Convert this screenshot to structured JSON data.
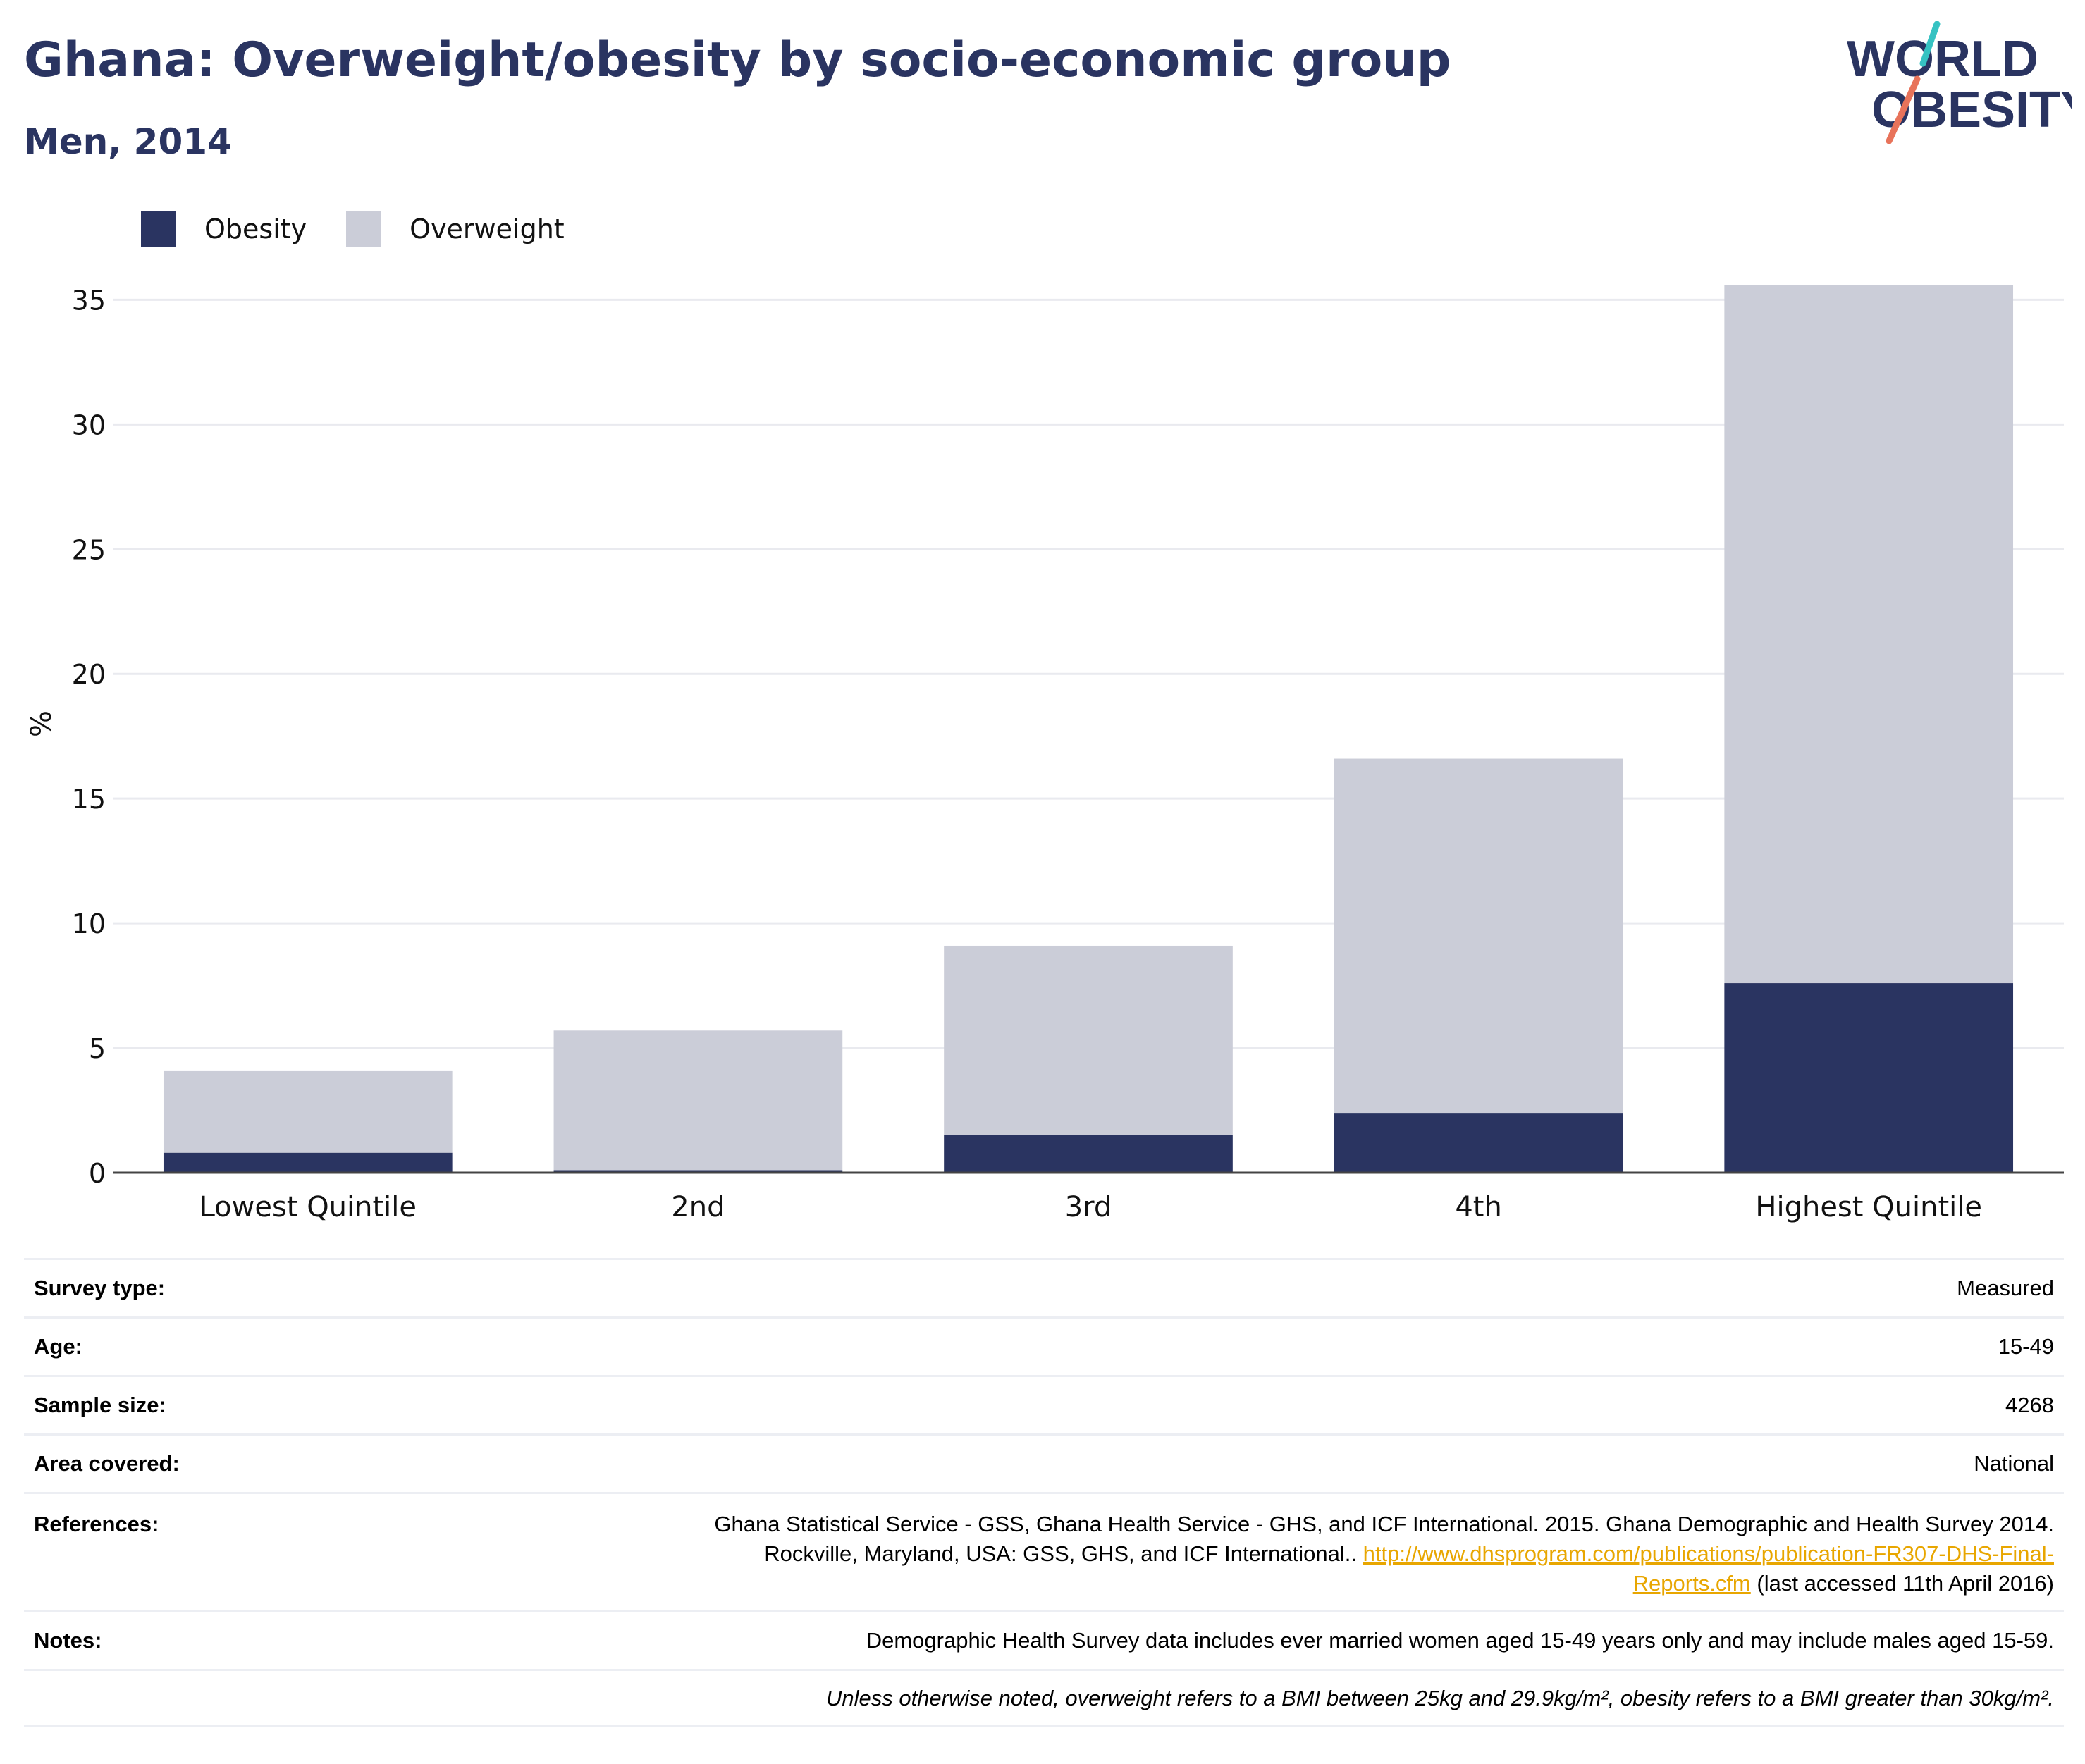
{
  "title": "Ghana: Overweight/obesity by socio-economic group",
  "subtitle": "Men, 2014",
  "logo": {
    "line1": "WORLD",
    "line2": "OBESITY",
    "accent_colors": [
      "#36c2c2",
      "#e8735a"
    ]
  },
  "legend": [
    {
      "label": "Obesity",
      "color": "#2a3461"
    },
    {
      "label": "Overweight",
      "color": "#cbcdd8"
    }
  ],
  "chart_data": {
    "type": "bar",
    "stacked": true,
    "categories": [
      "Lowest Quintile",
      "2nd",
      "3rd",
      "4th",
      "Highest Quintile"
    ],
    "series": [
      {
        "name": "Obesity",
        "color": "#2a3461",
        "values": [
          0.8,
          0.1,
          1.5,
          2.4,
          7.6
        ]
      },
      {
        "name": "Overweight",
        "color": "#cbcdd8",
        "values": [
          3.3,
          5.6,
          7.6,
          14.2,
          28.0
        ]
      }
    ],
    "ylabel": "%",
    "ylim": [
      0,
      36
    ],
    "yticks": [
      0,
      5,
      10,
      15,
      20,
      25,
      30,
      35
    ],
    "grid": true,
    "legend_position": "top-left"
  },
  "info": {
    "survey_type": {
      "label": "Survey type:",
      "value": "Measured"
    },
    "age": {
      "label": "Age:",
      "value": "15-49"
    },
    "sample_size": {
      "label": "Sample size:",
      "value": "4268"
    },
    "area_covered": {
      "label": "Area covered:",
      "value": "National"
    },
    "references": {
      "label": "References:",
      "text1": "Ghana Statistical Service - GSS, Ghana Health Service - GHS, and ICF International. 2015. Ghana Demographic and Health Survey 2014.",
      "text2": "Rockville, Maryland, USA: GSS, GHS, and ICF International..",
      "link_part1": "http://www.dhsprogram.com/publications/publication-FR307-DHS-Final-",
      "link_part2": "Reports.cfm",
      "accessed": "(last accessed 11th April 2016)"
    },
    "notes": {
      "label": "Notes:",
      "value": "Demographic Health Survey data includes ever married women aged 15-49 years only and may include males aged 15-59."
    },
    "definition": "Unless otherwise noted, overweight refers to a BMI between 25kg and 29.9kg/m², obesity refers to a BMI greater than 30kg/m²."
  }
}
